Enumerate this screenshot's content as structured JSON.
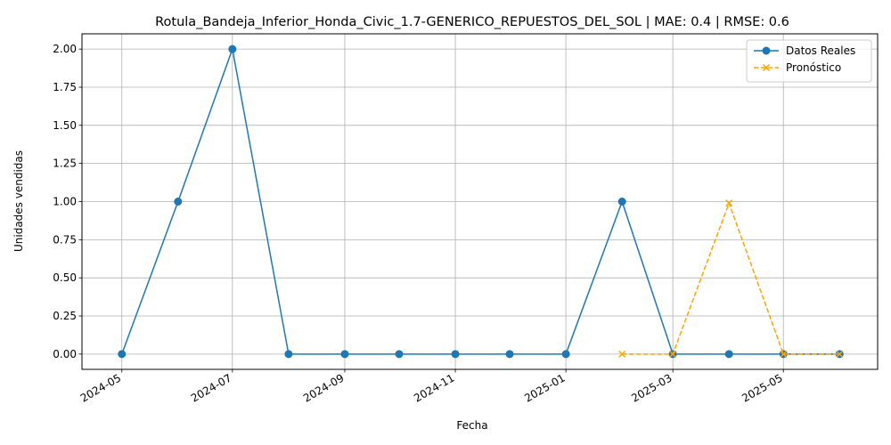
{
  "chart_data": {
    "type": "line",
    "title": "Rotula_Bandeja_Inferior_Honda_Civic_1.7-GENERICO_REPUESTOS_DEL_SOL | MAE: 0.4 | RMSE: 0.6",
    "xlabel": "Fecha",
    "ylabel": "Unidades vendidas",
    "grid": true,
    "legend_position": "top-right",
    "ylim": [
      -0.1,
      2.1
    ],
    "xlim": [
      "2024-04-09",
      "2025-06-22"
    ],
    "x_ticks": [
      "2024-05",
      "2024-07",
      "2024-09",
      "2024-11",
      "2025-01",
      "2025-03",
      "2025-05"
    ],
    "x_tick_dates": [
      "2024-05-01",
      "2024-07-01",
      "2024-09-01",
      "2024-11-01",
      "2025-01-01",
      "2025-03-01",
      "2025-05-01"
    ],
    "y_ticks": [
      "0.00",
      "0.25",
      "0.50",
      "0.75",
      "1.00",
      "1.25",
      "1.50",
      "1.75",
      "2.00"
    ],
    "series": [
      {
        "name": "Datos Reales",
        "color": "#1f77b4",
        "marker": "circle",
        "linestyle": "solid",
        "x": [
          "2024-05-01",
          "2024-06-01",
          "2024-07-01",
          "2024-08-01",
          "2024-09-01",
          "2024-10-01",
          "2024-11-01",
          "2024-12-01",
          "2025-01-01",
          "2025-02-01",
          "2025-03-01",
          "2025-04-01",
          "2025-05-01",
          "2025-06-01"
        ],
        "y": [
          0,
          1,
          2,
          0,
          0,
          0,
          0,
          0,
          0,
          1,
          0,
          0,
          0,
          0
        ]
      },
      {
        "name": "Pronóstico",
        "color": "#ffa500",
        "marker": "x",
        "linestyle": "dashed",
        "x": [
          "2025-02-01",
          "2025-03-01",
          "2025-04-01",
          "2025-05-01",
          "2025-06-01"
        ],
        "y": [
          0,
          0,
          0.99,
          0,
          0
        ]
      }
    ]
  }
}
